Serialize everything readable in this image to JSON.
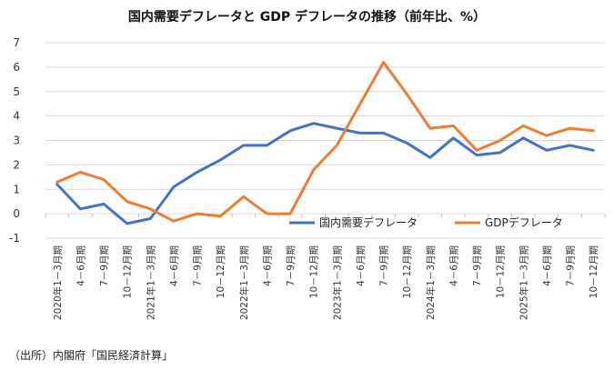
{
  "title": "国内需要デフレータと GDP デフレータの推移（前年比、%）",
  "source": "（出所）内閣府「国民経済計算」",
  "chart_data": {
    "type": "line",
    "title": "国内需要デフレータと GDP デフレータの推移（前年比、%）",
    "xlabel": "",
    "ylabel": "",
    "ylim": [
      -1,
      7
    ],
    "yticks": [
      "-1",
      "0",
      "1",
      "2",
      "3",
      "4",
      "5",
      "6",
      "7"
    ],
    "grid": true,
    "legend_position": "bottom-right",
    "categories": [
      "2020年1－3月期",
      "4－6月期",
      "7－9月期",
      "10－12月期",
      "2021年1－3月期",
      "4－6月期",
      "7－9月期",
      "10－12月期",
      "2022年1－3月期",
      "4－6月期",
      "7－9月期",
      "10－12月期",
      "2023年1－3月期",
      "4－6月期",
      "7－9月期",
      "10－12月期",
      "2024年1－3月期",
      "4－6月期",
      "7－9月期",
      "10－12月期",
      "2025年1－3月期",
      "4－6月期",
      "7－9月期",
      "10－12月期"
    ],
    "series": [
      {
        "name": "国内需要デフレータ",
        "color": "#4472c4",
        "values": [
          1.2,
          0.2,
          0.4,
          -0.4,
          -0.2,
          1.1,
          1.7,
          2.2,
          2.8,
          2.8,
          3.4,
          3.7,
          3.5,
          3.3,
          3.3,
          2.9,
          2.3,
          3.1,
          2.4,
          2.5,
          3.1,
          2.6,
          2.8,
          2.6
        ]
      },
      {
        "name": "GDPデフレータ",
        "color": "#ed7d31",
        "values": [
          1.3,
          1.7,
          1.4,
          0.5,
          0.2,
          -0.3,
          0.0,
          -0.1,
          0.7,
          0.0,
          0.0,
          1.8,
          2.8,
          4.5,
          6.2,
          4.9,
          3.5,
          3.6,
          2.6,
          3.0,
          3.6,
          3.2,
          3.5,
          3.4
        ]
      }
    ]
  }
}
